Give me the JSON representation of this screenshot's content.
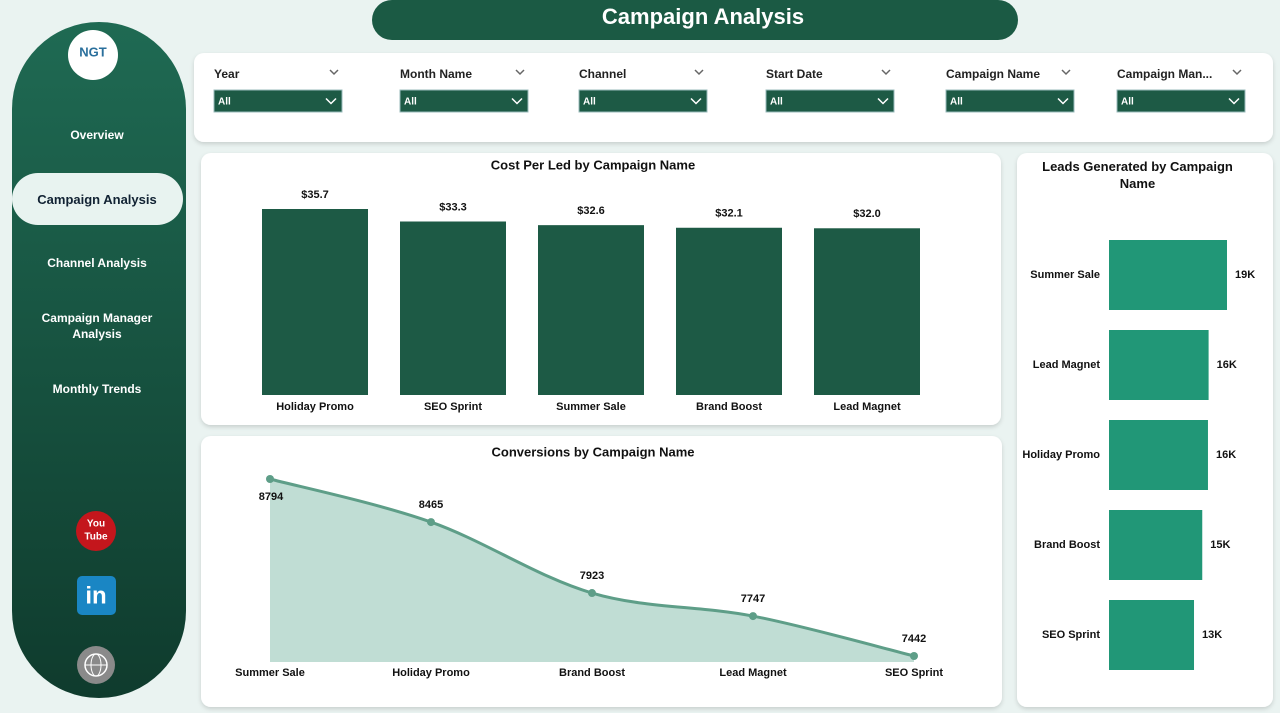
{
  "header": {
    "title": "Campaign Analysis"
  },
  "logo": {
    "text": "NGT"
  },
  "nav": [
    "Overview",
    "Campaign Analysis",
    "Channel Analysis",
    "Campaign Manager Analysis",
    "Monthly Trends"
  ],
  "active_nav": 1,
  "filters": [
    {
      "label": "Year",
      "value": "All"
    },
    {
      "label": "Month Name",
      "value": "All"
    },
    {
      "label": "Channel",
      "value": "All"
    },
    {
      "label": "Start Date",
      "value": "All"
    },
    {
      "label": "Campaign Name",
      "value": "All"
    },
    {
      "label": "Campaign Man...",
      "value": "All"
    }
  ],
  "icons": {
    "youtube": [
      "You",
      "Tube"
    ],
    "linkedin": "in"
  },
  "chart_data": [
    {
      "type": "bar",
      "title": "Cost Per Led by Campaign Name",
      "categories": [
        "Holiday Promo",
        "SEO Sprint",
        "Summer Sale",
        "Brand Boost",
        "Lead Magnet"
      ],
      "values": [
        35.7,
        33.3,
        32.6,
        32.1,
        32.0
      ],
      "value_labels": [
        "$35.7",
        "$33.3",
        "$32.6",
        "$32.1",
        "$32.0"
      ],
      "color": "#1d5a45"
    },
    {
      "type": "area",
      "title": "Conversions by Campaign Name",
      "categories": [
        "Summer Sale",
        "Holiday Promo",
        "Brand Boost",
        "Lead Magnet",
        "SEO Sprint"
      ],
      "values": [
        8794,
        8465,
        7923,
        7747,
        7442
      ],
      "color": "#5e9e88",
      "fill": "#c0ddd4"
    },
    {
      "type": "hbar",
      "title": "Leads Generated by Campaign Name",
      "categories": [
        "Summer Sale",
        "Lead Magnet",
        "Holiday Promo",
        "Brand Boost",
        "SEO Sprint"
      ],
      "values": [
        18600,
        15700,
        15600,
        14700,
        13400
      ],
      "value_labels": [
        "19K",
        "16K",
        "16K",
        "15K",
        "13K"
      ],
      "color": "#219777"
    }
  ]
}
